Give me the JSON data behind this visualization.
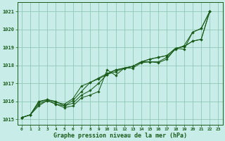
{
  "title": "Graphe pression niveau de la mer (hPa)",
  "bg_color": "#c8ede8",
  "grid_color": "#90c8b8",
  "line_color": "#1a5c1a",
  "marker_color": "#1a5c1a",
  "xlim": [
    -0.5,
    23.5
  ],
  "ylim": [
    1014.7,
    1021.5
  ],
  "yticks": [
    1015,
    1016,
    1017,
    1018,
    1019,
    1020,
    1021
  ],
  "xticks": [
    0,
    1,
    2,
    3,
    4,
    5,
    6,
    7,
    8,
    9,
    10,
    11,
    12,
    13,
    14,
    15,
    16,
    17,
    18,
    19,
    20,
    21,
    22,
    23
  ],
  "series": [
    {
      "x": [
        0,
        1,
        2,
        3,
        4,
        5,
        6,
        7,
        8,
        9,
        10,
        11,
        12,
        13,
        14,
        15,
        16,
        17,
        18,
        19,
        20,
        21,
        22
      ],
      "y": [
        1015.1,
        1015.25,
        1015.75,
        1016.05,
        1015.85,
        1015.65,
        1015.75,
        1016.2,
        1016.35,
        1016.55,
        1017.75,
        1017.45,
        1017.85,
        1017.85,
        1018.15,
        1018.2,
        1018.15,
        1018.35,
        1018.95,
        1018.9,
        1019.85,
        1020.05,
        1021.0
      ]
    },
    {
      "x": [
        0,
        1,
        2,
        3,
        4,
        5,
        6,
        7,
        8,
        9,
        10,
        11,
        12,
        13,
        14,
        15,
        16,
        17,
        18,
        19,
        20,
        21,
        22
      ],
      "y": [
        1015.1,
        1015.25,
        1015.85,
        1016.05,
        1015.85,
        1015.75,
        1016.05,
        1016.55,
        1017.05,
        1017.3,
        1017.55,
        1017.75,
        1017.85,
        1017.95,
        1018.2,
        1018.35,
        1018.45,
        1018.55,
        1018.95,
        1019.05,
        1019.35,
        1019.45,
        1021.0
      ]
    },
    {
      "x": [
        0,
        1,
        2,
        3,
        4,
        5,
        6,
        7,
        8,
        9,
        10,
        11,
        12,
        13,
        14,
        15,
        16,
        17,
        18,
        19,
        20,
        21,
        22
      ],
      "y": [
        1015.1,
        1015.25,
        1015.95,
        1016.1,
        1015.95,
        1015.85,
        1016.15,
        1016.85,
        1017.05,
        1017.25,
        1017.5,
        1017.65,
        1017.85,
        1017.95,
        1018.2,
        1018.35,
        1018.45,
        1018.55,
        1018.95,
        1019.05,
        1019.35,
        1019.45,
        1021.0
      ]
    },
    {
      "x": [
        0,
        1,
        2,
        3,
        4,
        5,
        6,
        7,
        8,
        9,
        10,
        11,
        12,
        13,
        14,
        15,
        16,
        17,
        18,
        19,
        20,
        21,
        22
      ],
      "y": [
        1015.1,
        1015.25,
        1016.0,
        1016.1,
        1016.0,
        1015.75,
        1015.9,
        1016.35,
        1016.6,
        1017.0,
        1017.5,
        1017.75,
        1017.85,
        1017.95,
        1018.2,
        1018.2,
        1018.2,
        1018.45,
        1018.9,
        1019.1,
        1019.85,
        1020.05,
        1021.0
      ]
    }
  ]
}
